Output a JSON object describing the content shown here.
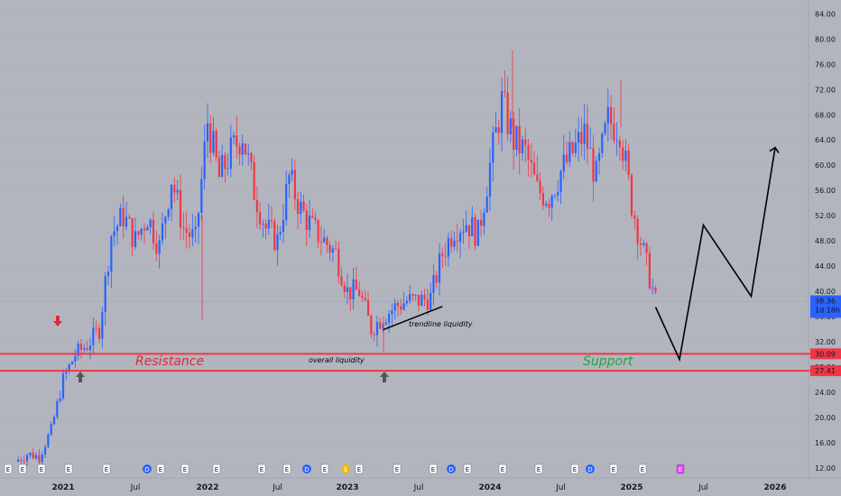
{
  "chart_data": {
    "type": "candlestick",
    "title": "",
    "xlabel": "",
    "ylabel": "",
    "ylim": [
      10.4,
      86.2
    ],
    "y_ticks": [
      "84.00",
      "80.00",
      "76.00",
      "72.00",
      "68.00",
      "64.00",
      "60.00",
      "56.00",
      "52.00",
      "48.00",
      "44.00",
      "40.00",
      "36.00",
      "32.00",
      "28.00",
      "24.00",
      "20.00",
      "16.00",
      "12.00"
    ],
    "x_ticks": [
      "2021",
      "Jul",
      "2022",
      "Jul",
      "2023",
      "Jul",
      "2024",
      "Jul",
      "2025",
      "Jul",
      "2026"
    ],
    "price_labels": {
      "current": {
        "value": "38.36",
        "countdown": "1d 18h",
        "y": 38.36
      },
      "resistance": {
        "value": "30.09",
        "y": 30.09
      },
      "support": {
        "value": "27.41",
        "y": 27.41
      }
    },
    "levels": [
      {
        "name": "Resistance",
        "y": 30.09,
        "color": "#f23645"
      },
      {
        "name": "Support",
        "y": 27.41,
        "color": "#f23645"
      }
    ],
    "annotations": [
      {
        "text": "Resistance",
        "color": "#e02a37"
      },
      {
        "text": "Support",
        "color": "#25a244"
      },
      {
        "text": "overall liquidity",
        "color": "#000000"
      },
      {
        "text": "trendline liquidity",
        "color": "#000000"
      }
    ],
    "trendline": {
      "start": [
        "2023-04",
        33.9
      ],
      "end": [
        "2023-09",
        37.6
      ]
    },
    "projection": [
      [
        "2025-03",
        37.5
      ],
      [
        "2025-05",
        29.2
      ],
      [
        "2025-07",
        50.5
      ],
      [
        "2025-11",
        39.2
      ],
      [
        "2026-01",
        62.8
      ]
    ],
    "event_markers": [
      "E",
      "E",
      "E",
      "E",
      "E",
      "D",
      "E",
      "E",
      "E",
      "E",
      "E",
      "D",
      "E",
      "$",
      "E",
      "E",
      "E",
      "D",
      "E",
      "E",
      "E",
      "E",
      "D",
      "E",
      "E",
      "E"
    ],
    "anchor_closes": [
      [
        "2020-09",
        13.0
      ],
      [
        "2020-10",
        14.2
      ],
      [
        "2020-11",
        13.8
      ],
      [
        "2020-12",
        18.0
      ],
      [
        "2021-01",
        26.0
      ],
      [
        "2021-02",
        30.0
      ],
      [
        "2021-03",
        31.5
      ],
      [
        "2021-04",
        34.0
      ],
      [
        "2021-05",
        49.0
      ],
      [
        "2021-06",
        52.0
      ],
      [
        "2021-07",
        48.0
      ],
      [
        "2021-08",
        52.0
      ],
      [
        "2021-09",
        47.0
      ],
      [
        "2021-10",
        58.0
      ],
      [
        "2021-11",
        50.0
      ],
      [
        "2021-12",
        48.0
      ],
      [
        "2022-01",
        67.0
      ],
      [
        "2022-02",
        58.0
      ],
      [
        "2022-03",
        62.0
      ],
      [
        "2022-04",
        65.0
      ],
      [
        "2022-05",
        56.0
      ],
      [
        "2022-06",
        50.0
      ],
      [
        "2022-07",
        48.0
      ],
      [
        "2022-08",
        58.0
      ],
      [
        "2022-09",
        53.0
      ],
      [
        "2022-10",
        50.0
      ],
      [
        "2022-11",
        48.0
      ],
      [
        "2022-12",
        46.0
      ],
      [
        "2023-01",
        40.0
      ],
      [
        "2023-02",
        40.0
      ],
      [
        "2023-03",
        34.0
      ],
      [
        "2023-04",
        36.0
      ],
      [
        "2023-05",
        37.5
      ],
      [
        "2023-06",
        38.5
      ],
      [
        "2023-07",
        38.5
      ],
      [
        "2023-08",
        39.0
      ],
      [
        "2023-09",
        46.0
      ],
      [
        "2023-10",
        50.0
      ],
      [
        "2023-11",
        51.0
      ],
      [
        "2023-12",
        49.0
      ],
      [
        "2024-01",
        60.0
      ],
      [
        "2024-02",
        70.0
      ],
      [
        "2024-03",
        64.0
      ],
      [
        "2024-04",
        62.0
      ],
      [
        "2024-05",
        56.0
      ],
      [
        "2024-06",
        55.0
      ],
      [
        "2024-07",
        59.0
      ],
      [
        "2024-08",
        62.0
      ],
      [
        "2024-09",
        65.0
      ],
      [
        "2024-10",
        58.0
      ],
      [
        "2024-11",
        67.0
      ],
      [
        "2024-12",
        66.0
      ],
      [
        "2025-01",
        54.0
      ],
      [
        "2025-02",
        46.0
      ],
      [
        "2025-03",
        38.4
      ]
    ],
    "colors": {
      "up": "#2962ff",
      "down": "#f23645",
      "level": "#f23645",
      "current_label": "#2962ff",
      "background": "#b2b5be"
    }
  }
}
